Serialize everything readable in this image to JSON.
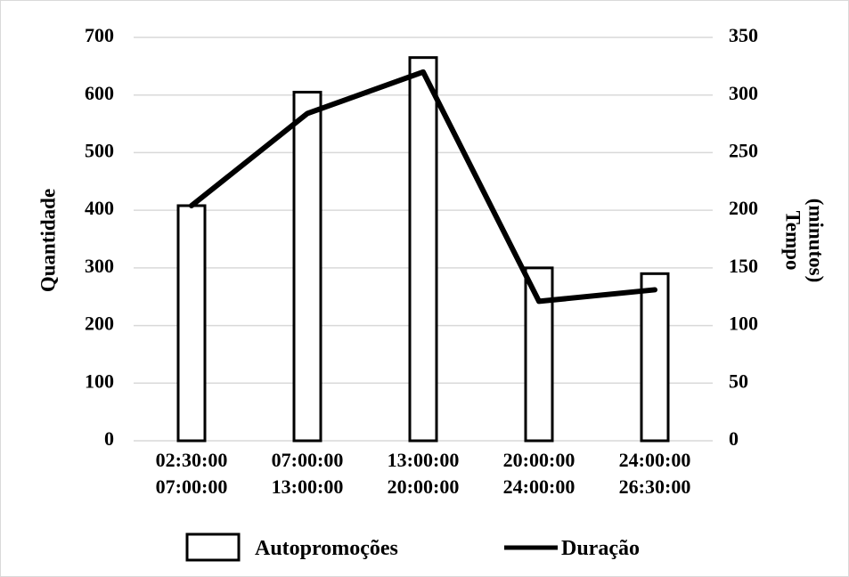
{
  "chart_data": {
    "type": "bar",
    "categories": [
      [
        "02:30:00",
        "07:00:00"
      ],
      [
        "07:00:00",
        "13:00:00"
      ],
      [
        "13:00:00",
        "20:00:00"
      ],
      [
        "20:00:00",
        "24:00:00"
      ],
      [
        "24:00:00",
        "26:30:00"
      ]
    ],
    "series": [
      {
        "name": "Autopromoções",
        "type": "bar",
        "axis": "left",
        "values": [
          408,
          605,
          665,
          300,
          290
        ]
      },
      {
        "name": "Duração",
        "type": "line",
        "axis": "right",
        "values": [
          204,
          284,
          320,
          121,
          131
        ]
      }
    ],
    "ylabel": "Quantidade",
    "y2label": [
      "Tempo",
      "(minutos)"
    ],
    "ylim": [
      0,
      700
    ],
    "y2lim": [
      0,
      350
    ],
    "yticks": [
      "0",
      "100",
      "200",
      "300",
      "400",
      "500",
      "600",
      "700"
    ],
    "y2ticks": [
      "0",
      "50",
      "100",
      "150",
      "200",
      "250",
      "300",
      "350"
    ],
    "grid": true,
    "legend": "bottom",
    "colors": {
      "bar_fill": "#ffffff",
      "bar_stroke": "#000000",
      "line": "#000000",
      "grid": "#d9d9d9"
    }
  }
}
